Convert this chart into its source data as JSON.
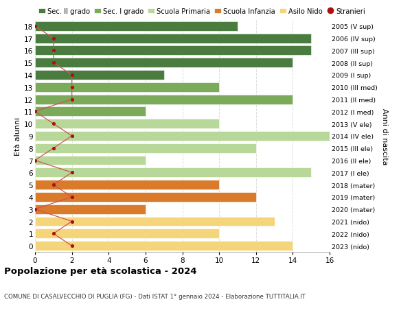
{
  "ages": [
    18,
    17,
    16,
    15,
    14,
    13,
    12,
    11,
    10,
    9,
    8,
    7,
    6,
    5,
    4,
    3,
    2,
    1,
    0
  ],
  "years": [
    "2005 (V sup)",
    "2006 (IV sup)",
    "2007 (III sup)",
    "2008 (II sup)",
    "2009 (I sup)",
    "2010 (III med)",
    "2011 (II med)",
    "2012 (I med)",
    "2013 (V ele)",
    "2014 (IV ele)",
    "2015 (III ele)",
    "2016 (II ele)",
    "2017 (I ele)",
    "2018 (mater)",
    "2019 (mater)",
    "2020 (mater)",
    "2021 (nido)",
    "2022 (nido)",
    "2023 (nido)"
  ],
  "bar_values": [
    11,
    15,
    15,
    14,
    7,
    10,
    14,
    6,
    10,
    16,
    12,
    6,
    15,
    10,
    12,
    6,
    13,
    10,
    14
  ],
  "bar_colors": [
    "#4a7c40",
    "#4a7c40",
    "#4a7c40",
    "#4a7c40",
    "#4a7c40",
    "#7aaa5a",
    "#7aaa5a",
    "#7aaa5a",
    "#b8d89a",
    "#b8d89a",
    "#b8d89a",
    "#b8d89a",
    "#b8d89a",
    "#d97b2a",
    "#d97b2a",
    "#d97b2a",
    "#f5d57a",
    "#f5d57a",
    "#f5d57a"
  ],
  "stranieri_values": [
    0,
    1,
    1,
    1,
    2,
    2,
    2,
    0,
    1,
    2,
    1,
    0,
    2,
    1,
    2,
    0,
    2,
    1,
    2
  ],
  "legend_labels": [
    "Sec. II grado",
    "Sec. I grado",
    "Scuola Primaria",
    "Scuola Infanzia",
    "Asilo Nido",
    "Stranieri"
  ],
  "legend_colors": [
    "#4a7c40",
    "#7aaa5a",
    "#b8d89a",
    "#d97b2a",
    "#f5d57a",
    "#aa1111"
  ],
  "ylabel_left": "Età alunni",
  "ylabel_right": "Anni di nascita",
  "xlim": [
    0,
    16
  ],
  "xticks": [
    0,
    2,
    4,
    6,
    8,
    10,
    12,
    14,
    16
  ],
  "title": "Popolazione per età scolastica - 2024",
  "subtitle": "COMUNE DI CASALVECCHIO DI PUGLIA (FG) - Dati ISTAT 1° gennaio 2024 - Elaborazione TUTTITALIA.IT",
  "bar_height": 0.78,
  "stranieri_color": "#aa1111",
  "stranieri_line_color": "#cc5555",
  "grid_color": "#dddddd"
}
